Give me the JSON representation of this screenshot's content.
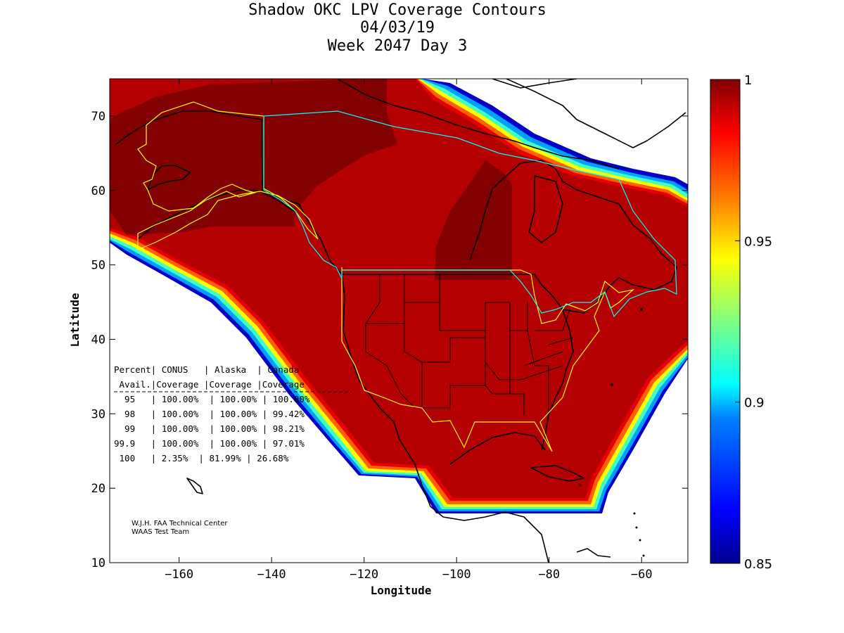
{
  "title_lines": [
    "Shadow OKC LPV Coverage Contours",
    "04/03/19",
    "Week 2047 Day 3"
  ],
  "axes": {
    "xlabel": "Longitude",
    "ylabel": "Latitude",
    "xlim": [
      -175,
      -50
    ],
    "ylim": [
      10,
      75
    ],
    "xticks": [
      -160,
      -140,
      -120,
      -100,
      -80,
      -60
    ],
    "yticks": [
      10,
      20,
      30,
      40,
      50,
      60,
      70
    ]
  },
  "colorbar": {
    "range": [
      0.85,
      1
    ],
    "ticks": [
      "1",
      "0.95",
      "0.9",
      "0.85"
    ],
    "colormap": "jet",
    "colors": [
      "#00008f",
      "#0000ff",
      "#0080ff",
      "#00ffff",
      "#80ff80",
      "#ffff00",
      "#ff8000",
      "#ff0000",
      "#800000"
    ]
  },
  "table": {
    "header1": "Percent| CONUS   | Alaska  | Canada",
    "header2": " Avail.|Coverage |Coverage |Coverage",
    "rows": [
      "  95   | 100.00%  | 100.00% | 100.00%",
      "  98   | 100.00%  | 100.00% | 99.42%",
      "  99   | 100.00%  | 100.00% | 98.21%",
      "99.9   | 100.00%  | 100.00% | 97.01%",
      " 100   | 2.35%  | 81.99% | 26.68%"
    ]
  },
  "coverage_table": [
    {
      "percent_avail": "95",
      "conus": "100.00%",
      "alaska": "100.00%",
      "canada": "100.00%"
    },
    {
      "percent_avail": "98",
      "conus": "100.00%",
      "alaska": "100.00%",
      "canada": "99.42%"
    },
    {
      "percent_avail": "99",
      "conus": "100.00%",
      "alaska": "100.00%",
      "canada": "98.21%"
    },
    {
      "percent_avail": "99.9",
      "conus": "100.00%",
      "alaska": "100.00%",
      "canada": "97.01%"
    },
    {
      "percent_avail": "100",
      "conus": "2.35%",
      "alaska": "81.99%",
      "canada": "26.68%"
    }
  ],
  "credit_lines": [
    "W.J.H. FAA Technical Center",
    "WAAS Test Team"
  ],
  "colors": {
    "coverage_high": "#800000",
    "coverage_main": "#b40000",
    "service_volume_conus_alaska": "#ffff00",
    "service_volume_canada": "#00ffff"
  }
}
